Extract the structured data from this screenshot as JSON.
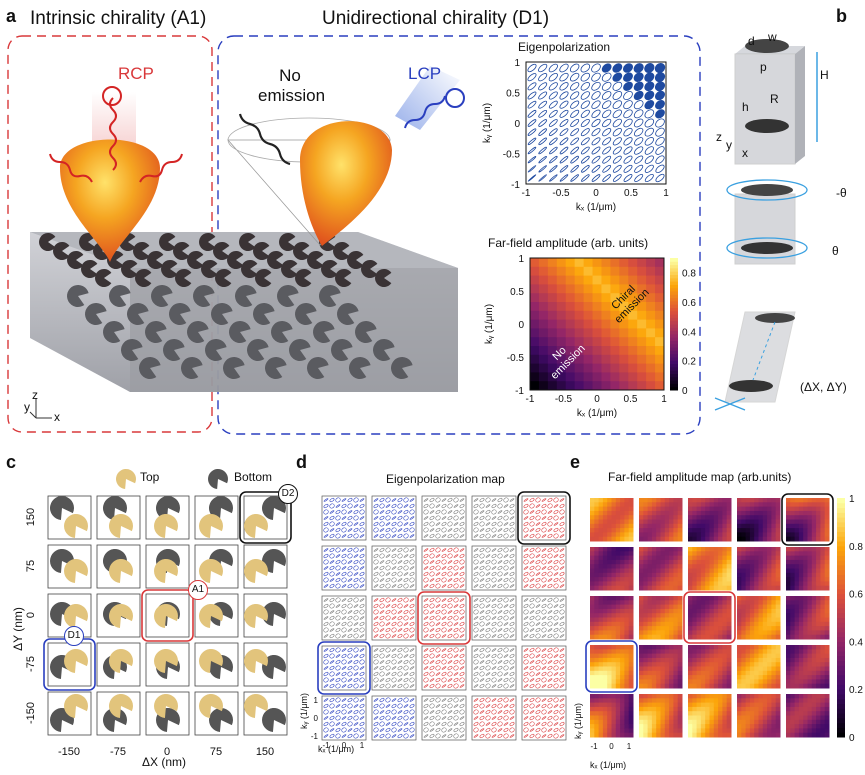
{
  "panel_a": {
    "label": "a",
    "left_title": "Intrinsic chirality (A1)",
    "right_title": "Unidirectional chirality (D1)",
    "rcp": "RCP",
    "lcp": "LCP",
    "no_emission": [
      "No",
      "emission"
    ],
    "eig_title": "Eigenpolarization",
    "ff_title": "Far-field amplitude (arb. units)",
    "xlabel": "kₓ (1/μm)",
    "ylabel": "kᵧ (1/μm)",
    "ticks": [
      "-1",
      "-0.5",
      "0",
      "0.5",
      "1"
    ],
    "colorbar_ticks": [
      "0",
      "0.2",
      "0.4",
      "0.6",
      "0.8"
    ],
    "chiral_emission": [
      "Chiral",
      "emission"
    ],
    "no_emission_map": [
      "No",
      "emission"
    ],
    "axes_small": {
      "z": "z",
      "y": "y",
      "x": "x"
    }
  },
  "panel_b": {
    "label": "b",
    "d": "d",
    "w": "w",
    "p": "p",
    "h": "H",
    "h1": "h",
    "r": "R",
    "theta_top": "-θ",
    "theta_bottom": "θ",
    "shift": "(ΔX, ΔY)",
    "axes_small": {
      "z": "z",
      "y": "y",
      "x": "x"
    }
  },
  "panel_c": {
    "label": "c",
    "legend_top": "Top",
    "legend_bottom": "Bottom",
    "xlabel": "ΔX (nm)",
    "ylabel": "ΔY (nm)",
    "x_ticks": [
      "-150",
      "-75",
      "0",
      "75",
      "150"
    ],
    "y_ticks": [
      "150",
      "75",
      "0",
      "-75",
      "-150"
    ],
    "markers": {
      "a1": "A1",
      "d1": "D1",
      "d2": "D2"
    }
  },
  "panel_d": {
    "label": "d",
    "title": "Eigenpolarization map",
    "xlabel": "kₓ (1/μm)",
    "ylabel": "kᵧ (1/μm)",
    "ticks": [
      "-1",
      "0",
      "1"
    ]
  },
  "panel_e": {
    "label": "e",
    "title": "Far-field amplitude map (arb.units)",
    "xlabel": "kₓ (1/μm)",
    "ylabel": "kᵧ (1/μm)",
    "ticks": [
      "-1",
      "0",
      "1"
    ],
    "colorbar_ticks": [
      "1",
      "0.8",
      "0.6",
      "0.4",
      "0.2",
      "0"
    ]
  },
  "colors": {
    "red": "#d9383a",
    "blue": "#2a3fbf",
    "gold": "#e2c47c",
    "dark": "#555555"
  }
}
